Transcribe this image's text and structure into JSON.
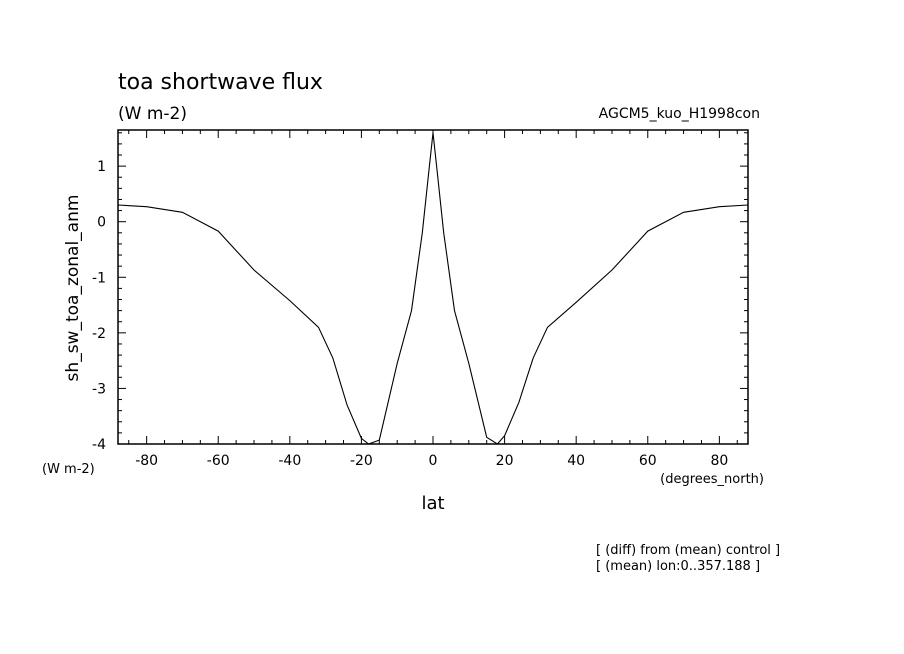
{
  "chart_data": {
    "type": "line",
    "title": "toa shortwave flux",
    "units": "(W m-2)",
    "experiment": "AGCM5_kuo_H1998con",
    "ylabel": "sh_sw_toa_zonal_anm",
    "y_units": "(W m-2)",
    "xlabel": "lat",
    "x_units": "(degrees_north)",
    "xlim": [
      -88,
      88
    ],
    "ylim": [
      -4,
      1.65
    ],
    "x_ticks": [
      -80,
      -60,
      -40,
      -20,
      0,
      20,
      40,
      60,
      80
    ],
    "x_tick_labels": [
      "-80",
      "-60",
      "-40",
      "-20",
      "0",
      "20",
      "40",
      "60",
      "80"
    ],
    "y_ticks": [
      -4,
      -3,
      -2,
      -1,
      0,
      1
    ],
    "y_tick_labels": [
      "-4",
      "-3",
      "-2",
      "-1",
      "0",
      "1"
    ],
    "series": [
      {
        "x": [
          -88,
          -80,
          -70,
          -60,
          -50,
          -40,
          -32,
          -28,
          -24,
          -20,
          -18,
          -15,
          -10,
          -6,
          -3,
          -1,
          0,
          1,
          3,
          6,
          10,
          15,
          18,
          20,
          24,
          28,
          32,
          40,
          50,
          60,
          70,
          80,
          88
        ],
        "y": [
          0.3,
          0.27,
          0.17,
          -0.17,
          -0.87,
          -1.42,
          -1.9,
          -2.45,
          -3.3,
          -3.9,
          -4.0,
          -3.93,
          -2.55,
          -1.6,
          -0.2,
          1.0,
          1.6,
          1.0,
          -0.2,
          -1.6,
          -2.55,
          -3.88,
          -4.0,
          -3.85,
          -3.25,
          -2.45,
          -1.9,
          -1.45,
          -0.87,
          -0.17,
          0.17,
          0.27,
          0.3
        ]
      }
    ]
  },
  "notes": [
    "[ (diff) from (mean) control ]",
    "[ (mean) lon:0..357.188 ]"
  ]
}
